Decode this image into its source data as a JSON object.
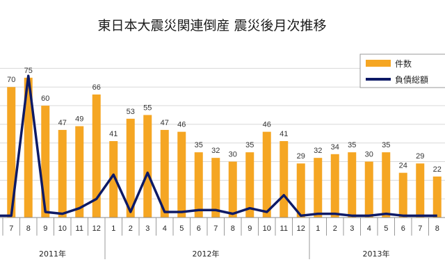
{
  "chart_data": {
    "type": "bar",
    "title": "東日本大震災関連倒産 震災後月次推移",
    "legend_position": "top-right",
    "categories": [
      "7",
      "8",
      "9",
      "10",
      "11",
      "12",
      "1",
      "2",
      "3",
      "4",
      "5",
      "6",
      "7",
      "8",
      "9",
      "10",
      "11",
      "12",
      "1",
      "2",
      "3",
      "4",
      "5",
      "6",
      "7",
      "8"
    ],
    "series": [
      {
        "name": "件数",
        "type": "bar",
        "color": "#f5a623",
        "values": [
          70,
          75,
          60,
          47,
          49,
          66,
          41,
          53,
          55,
          47,
          46,
          35,
          32,
          30,
          35,
          46,
          41,
          29,
          32,
          34,
          35,
          30,
          35,
          24,
          29,
          22
        ]
      },
      {
        "name": "負債総額",
        "type": "line",
        "color": "#0d1a66",
        "values": [
          1,
          76,
          3,
          2,
          5,
          10,
          23,
          3,
          24,
          3,
          3,
          4,
          4,
          2,
          5,
          3,
          12,
          1,
          2,
          2,
          1,
          1,
          2,
          1,
          1,
          1
        ]
      }
    ],
    "year_labels": [
      {
        "label": "2011年",
        "start": 0,
        "end": 5
      },
      {
        "label": "2012年",
        "start": 6,
        "end": 17
      },
      {
        "label": "2013年",
        "start": 18,
        "end": 25
      }
    ],
    "ylim": [
      0,
      85
    ],
    "grid": true
  }
}
